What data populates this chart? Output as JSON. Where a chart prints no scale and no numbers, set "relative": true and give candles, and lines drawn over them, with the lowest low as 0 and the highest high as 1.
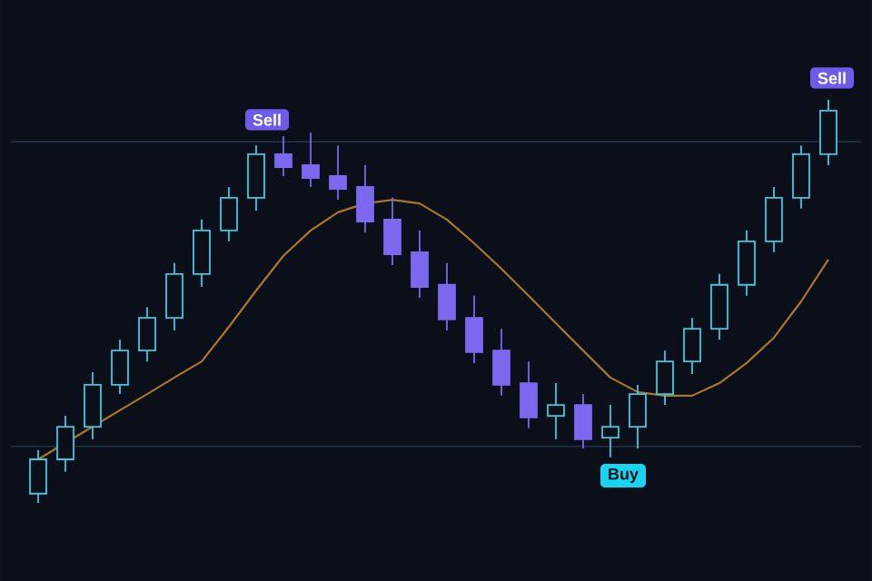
{
  "chart_data": {
    "type": "candlestick",
    "relative": true,
    "tick_labels": false,
    "categories": [
      null,
      null,
      null,
      null,
      null,
      null,
      null,
      null,
      null,
      null,
      null,
      null,
      null,
      null,
      null,
      null,
      null,
      null,
      null,
      null,
      null,
      null,
      null,
      null,
      null,
      null,
      null,
      null,
      null,
      null
    ],
    "ohlc": [
      [
        0.023,
        0.131,
        0,
        0.108
      ],
      [
        0.108,
        0.216,
        0.077,
        0.189
      ],
      [
        0.189,
        0.324,
        0.158,
        0.293
      ],
      [
        0.293,
        0.405,
        0.27,
        0.378
      ],
      [
        0.378,
        0.486,
        0.351,
        0.459
      ],
      [
        0.459,
        0.595,
        0.428,
        0.568
      ],
      [
        0.568,
        0.703,
        0.536,
        0.676
      ],
      [
        0.676,
        0.784,
        0.649,
        0.757
      ],
      [
        0.757,
        0.887,
        0.725,
        0.865
      ],
      [
        0.865,
        0.91,
        0.811,
        0.833
      ],
      [
        0.838,
        0.919,
        0.784,
        0.806
      ],
      [
        0.811,
        0.887,
        0.752,
        0.779
      ],
      [
        0.784,
        0.838,
        0.671,
        0.698
      ],
      [
        0.703,
        0.757,
        0.59,
        0.617
      ],
      [
        0.622,
        0.676,
        0.509,
        0.536
      ],
      [
        0.541,
        0.595,
        0.428,
        0.455
      ],
      [
        0.459,
        0.514,
        0.347,
        0.374
      ],
      [
        0.378,
        0.432,
        0.266,
        0.293
      ],
      [
        0.297,
        0.351,
        0.185,
        0.212
      ],
      [
        0.216,
        0.297,
        0.158,
        0.243
      ],
      [
        0.243,
        0.27,
        0.135,
        0.158
      ],
      [
        0.162,
        0.243,
        0.113,
        0.189
      ],
      [
        0.189,
        0.293,
        0.135,
        0.27
      ],
      [
        0.27,
        0.378,
        0.243,
        0.351
      ],
      [
        0.351,
        0.459,
        0.32,
        0.432
      ],
      [
        0.432,
        0.568,
        0.405,
        0.541
      ],
      [
        0.541,
        0.676,
        0.514,
        0.649
      ],
      [
        0.649,
        0.784,
        0.622,
        0.757
      ],
      [
        0.757,
        0.887,
        0.73,
        0.865
      ],
      [
        0.865,
        1.0,
        0.838,
        0.973
      ]
    ],
    "colors": [
      "#3ec8e0",
      "#3ec8e0",
      "#3ec8e0",
      "#3ec8e0",
      "#3ec8e0",
      "#3ec8e0",
      "#3ec8e0",
      "#3ec8e0",
      "#3ec8e0",
      "#7b68ee",
      "#7b68ee",
      "#7b68ee",
      "#7b68ee",
      "#7b68ee",
      "#7b68ee",
      "#7b68ee",
      "#7b68ee",
      "#7b68ee",
      "#7b68ee",
      "#3ec8e0",
      "#7b68ee",
      "#3ec8e0",
      "#3ec8e0",
      "#3ec8e0",
      "#3ec8e0",
      "#3ec8e0",
      "#3ec8e0",
      "#3ec8e0",
      "#3ec8e0",
      "#3ec8e0"
    ],
    "series": [
      {
        "type": "line",
        "color": "#a8782a",
        "values": [
          0.108,
          0.149,
          0.189,
          0.23,
          0.27,
          0.311,
          0.351,
          0.437,
          0.527,
          0.613,
          0.676,
          0.721,
          0.743,
          0.752,
          0.743,
          0.703,
          0.644,
          0.581,
          0.514,
          0.446,
          0.378,
          0.311,
          0.275,
          0.266,
          0.266,
          0.297,
          0.347,
          0.41,
          0.5,
          0.604
        ]
      }
    ],
    "ref_lines": [
      {
        "axis": "y",
        "value": 0.896,
        "color": "#1c3442"
      },
      {
        "axis": "y",
        "value": 0.14,
        "color": "#1c3442"
      }
    ],
    "annotations": [
      "Sell",
      "Sell",
      "Buy"
    ]
  }
}
